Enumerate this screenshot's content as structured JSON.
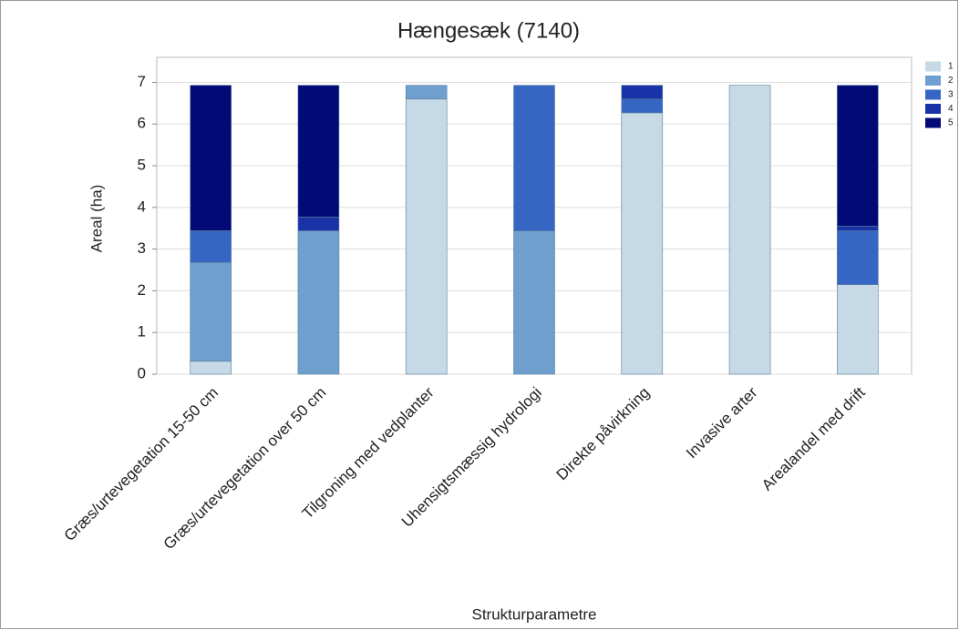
{
  "chart_data": {
    "type": "stacked_bar",
    "title": "Hængesæk (7140)",
    "x_label": "Strukturparametre",
    "y_label": "Areal (ha)",
    "categories": [
      "Græs/urtevegetation 15-50 cm",
      "Græs/urtevegetation over 50 cm",
      "Tilgroning med vedplanter",
      "Uhensigtsmæssig hydrologi",
      "Direkte påvirkning",
      "Invasive arter",
      "Arealandel med drift"
    ],
    "series": [
      {
        "name": "1",
        "color": "#c5d9e6",
        "values": [
          0.31,
          0,
          6.6,
          0,
          6.27,
          6.93,
          2.15
        ]
      },
      {
        "name": "2",
        "color": "#6f9fcf",
        "values": [
          2.37,
          3.44,
          0.33,
          3.44,
          0,
          0,
          0
        ]
      },
      {
        "name": "3",
        "color": "#3566c4",
        "values": [
          0.76,
          0,
          0,
          3.49,
          0.33,
          0,
          1.29
        ]
      },
      {
        "name": "4",
        "color": "#1a32a8",
        "values": [
          0,
          0.33,
          0,
          0,
          0.33,
          0,
          0.11
        ]
      },
      {
        "name": "5",
        "color": "#020a78",
        "values": [
          3.49,
          3.16,
          0,
          0,
          0,
          0,
          3.38
        ]
      }
    ],
    "ylim": [
      0,
      7.6
    ],
    "yticks": [
      0,
      1,
      2,
      3,
      4,
      5,
      6,
      7
    ],
    "grid": true,
    "legend": "right"
  }
}
